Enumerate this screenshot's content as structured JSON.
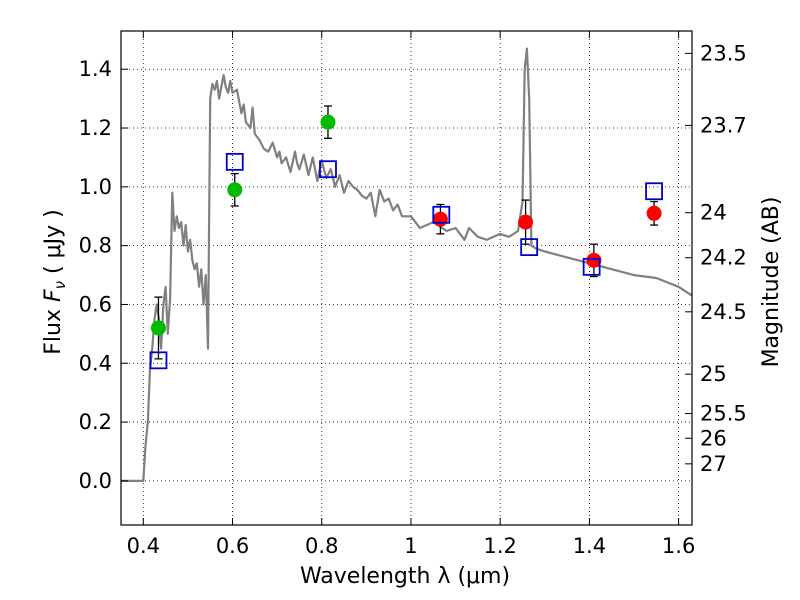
{
  "chart_data": {
    "type": "scatter",
    "xlabel": "Wavelength  λ (μm)",
    "ylabel_prefix": "Flux  ",
    "ylabel_symbol": "F",
    "ylabel_sub": "ν",
    "ylabel_unit": "  ( μJy )",
    "y2label": "Magnitude (AB)",
    "xlim": [
      0.35,
      1.63
    ],
    "ylim": [
      -0.15,
      1.53
    ],
    "grid": true,
    "grid_style": "dotted",
    "x_ticks": [
      {
        "value": 0.4,
        "label": "0.4"
      },
      {
        "value": 0.6,
        "label": "0.6"
      },
      {
        "value": 0.8,
        "label": "0.8"
      },
      {
        "value": 1.0,
        "label": "1"
      },
      {
        "value": 1.2,
        "label": "1.2"
      },
      {
        "value": 1.4,
        "label": "1.4"
      },
      {
        "value": 1.6,
        "label": "1.6"
      }
    ],
    "y_ticks": [
      {
        "value": 0.0,
        "label": "0.0"
      },
      {
        "value": 0.2,
        "label": "0.2"
      },
      {
        "value": 0.4,
        "label": "0.4"
      },
      {
        "value": 0.6,
        "label": "0.6"
      },
      {
        "value": 0.8,
        "label": "0.8"
      },
      {
        "value": 1.0,
        "label": "1.0"
      },
      {
        "value": 1.2,
        "label": "1.2"
      },
      {
        "value": 1.4,
        "label": "1.4"
      }
    ],
    "y2_ticks": [
      {
        "flux": 1.454,
        "label": "23.5"
      },
      {
        "flux": 1.209,
        "label": "23.7"
      },
      {
        "flux": 0.912,
        "label": "24"
      },
      {
        "flux": 0.759,
        "label": "24.2"
      },
      {
        "flux": 0.575,
        "label": "24.5"
      },
      {
        "flux": 0.363,
        "label": "25"
      },
      {
        "flux": 0.229,
        "label": "25.5"
      },
      {
        "flux": 0.145,
        "label": "26"
      },
      {
        "flux": 0.058,
        "label": "27"
      }
    ],
    "colors": {
      "sed": "#808080",
      "green": "#00bb00",
      "red": "#ff0000",
      "model_box": "#0000cc",
      "errbar": "#000000"
    },
    "sed_model": {
      "x": [
        0.35,
        0.4,
        0.405,
        0.41,
        0.415,
        0.42,
        0.425,
        0.43,
        0.435,
        0.44,
        0.445,
        0.45,
        0.455,
        0.46,
        0.465,
        0.47,
        0.475,
        0.48,
        0.485,
        0.49,
        0.495,
        0.5,
        0.505,
        0.51,
        0.515,
        0.52,
        0.525,
        0.53,
        0.535,
        0.54,
        0.545,
        0.55,
        0.555,
        0.56,
        0.565,
        0.57,
        0.58,
        0.585,
        0.59,
        0.595,
        0.6,
        0.61,
        0.62,
        0.625,
        0.63,
        0.64,
        0.645,
        0.65,
        0.66,
        0.67,
        0.68,
        0.69,
        0.7,
        0.705,
        0.71,
        0.72,
        0.73,
        0.74,
        0.745,
        0.75,
        0.76,
        0.77,
        0.78,
        0.79,
        0.8,
        0.81,
        0.82,
        0.83,
        0.84,
        0.85,
        0.86,
        0.87,
        0.88,
        0.89,
        0.9,
        0.91,
        0.92,
        0.93,
        0.94,
        0.95,
        0.96,
        0.97,
        0.98,
        1.0,
        1.02,
        1.05,
        1.08,
        1.1,
        1.12,
        1.13,
        1.15,
        1.17,
        1.2,
        1.22,
        1.24,
        1.25,
        1.255,
        1.26,
        1.265,
        1.27,
        1.28,
        1.3,
        1.35,
        1.4,
        1.45,
        1.5,
        1.55,
        1.6,
        1.63
      ],
      "y": [
        0.0,
        0.0,
        0.12,
        0.2,
        0.38,
        0.45,
        0.55,
        0.6,
        0.55,
        0.45,
        0.6,
        0.66,
        0.5,
        0.62,
        0.98,
        0.85,
        0.9,
        0.86,
        0.88,
        0.8,
        0.87,
        0.78,
        0.82,
        0.75,
        0.72,
        0.74,
        0.66,
        0.72,
        0.6,
        0.7,
        0.45,
        1.3,
        1.35,
        1.33,
        1.36,
        1.3,
        1.38,
        1.34,
        1.32,
        1.36,
        1.32,
        1.33,
        1.25,
        1.28,
        1.22,
        1.2,
        1.27,
        1.18,
        1.16,
        1.13,
        1.12,
        1.15,
        1.1,
        1.12,
        1.08,
        1.1,
        1.05,
        1.12,
        1.08,
        1.06,
        1.11,
        1.04,
        1.1,
        1.02,
        1.09,
        1.03,
        1.06,
        1.0,
        1.04,
        0.98,
        1.02,
        1.0,
        0.99,
        0.97,
        0.96,
        0.98,
        0.9,
        0.99,
        0.95,
        0.96,
        0.92,
        0.94,
        0.9,
        0.9,
        0.86,
        0.88,
        0.85,
        0.86,
        0.82,
        0.86,
        0.83,
        0.82,
        0.84,
        0.83,
        0.85,
        0.95,
        1.4,
        1.47,
        1.3,
        0.8,
        0.79,
        0.78,
        0.76,
        0.74,
        0.72,
        0.7,
        0.69,
        0.66,
        0.63
      ]
    },
    "series": [
      {
        "marker": "filled-circle",
        "color": "green",
        "points": [
          {
            "x": 0.434,
            "y": 0.52,
            "err": 0.105
          },
          {
            "x": 0.605,
            "y": 0.99,
            "err": 0.055
          },
          {
            "x": 0.814,
            "y": 1.22,
            "err": 0.055
          }
        ]
      },
      {
        "marker": "filled-circle",
        "color": "red",
        "points": [
          {
            "x": 1.066,
            "y": 0.89,
            "err": 0.05
          },
          {
            "x": 1.257,
            "y": 0.88,
            "err": 0.075
          },
          {
            "x": 1.41,
            "y": 0.75,
            "err": 0.055
          },
          {
            "x": 1.545,
            "y": 0.91,
            "err": 0.04
          }
        ]
      },
      {
        "marker": "open-square",
        "color": "model_box",
        "points": [
          {
            "x": 0.434,
            "y": 0.41
          },
          {
            "x": 0.605,
            "y": 1.085
          },
          {
            "x": 0.814,
            "y": 1.06
          },
          {
            "x": 1.068,
            "y": 0.905
          },
          {
            "x": 1.265,
            "y": 0.795
          },
          {
            "x": 1.405,
            "y": 0.728
          },
          {
            "x": 1.545,
            "y": 0.985
          }
        ]
      }
    ]
  }
}
